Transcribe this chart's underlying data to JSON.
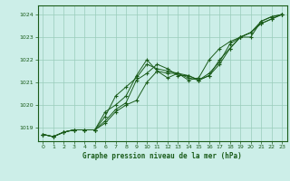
{
  "title": "Graphe pression niveau de la mer (hPa)",
  "bg_color": "#cceee8",
  "grid_color": "#99ccbb",
  "line_color": "#1a5c1a",
  "xlim": [
    -0.5,
    23.5
  ],
  "ylim": [
    1018.4,
    1024.4
  ],
  "yticks": [
    1019,
    1020,
    1021,
    1022,
    1023,
    1024
  ],
  "xticks": [
    0,
    1,
    2,
    3,
    4,
    5,
    6,
    7,
    8,
    9,
    10,
    11,
    12,
    13,
    14,
    15,
    16,
    17,
    18,
    19,
    20,
    21,
    22,
    23
  ],
  "series": [
    [
      1018.7,
      1018.6,
      1018.8,
      1018.9,
      1018.9,
      1018.9,
      1019.3,
      1019.8,
      1020.1,
      1021.1,
      1021.4,
      1021.8,
      1021.6,
      1021.3,
      1021.3,
      1021.1,
      1021.3,
      1022.0,
      1022.5,
      1023.0,
      1023.0,
      1023.7,
      1023.9,
      1024.0
    ],
    [
      1018.7,
      1018.6,
      1018.8,
      1018.9,
      1018.9,
      1018.9,
      1019.5,
      1020.4,
      1020.8,
      1021.2,
      1021.8,
      1021.6,
      1021.5,
      1021.4,
      1021.2,
      1021.1,
      1021.4,
      1021.9,
      1022.7,
      1023.0,
      1023.2,
      1023.6,
      1023.8,
      1024.0
    ],
    [
      1018.7,
      1018.6,
      1018.8,
      1018.9,
      1018.9,
      1018.9,
      1019.7,
      1020.0,
      1020.4,
      1021.3,
      1022.0,
      1021.5,
      1021.2,
      1021.4,
      1021.1,
      1021.2,
      1022.0,
      1022.5,
      1022.8,
      1023.0,
      1023.2,
      1023.6,
      1023.8,
      1024.0
    ],
    [
      1018.7,
      1018.6,
      1018.8,
      1018.9,
      1018.9,
      1018.9,
      1019.2,
      1019.7,
      1020.0,
      1020.2,
      1021.0,
      1021.5,
      1021.4,
      1021.4,
      1021.3,
      1021.1,
      1021.3,
      1021.8,
      1022.5,
      1023.0,
      1023.2,
      1023.7,
      1023.9,
      1024.0
    ]
  ]
}
